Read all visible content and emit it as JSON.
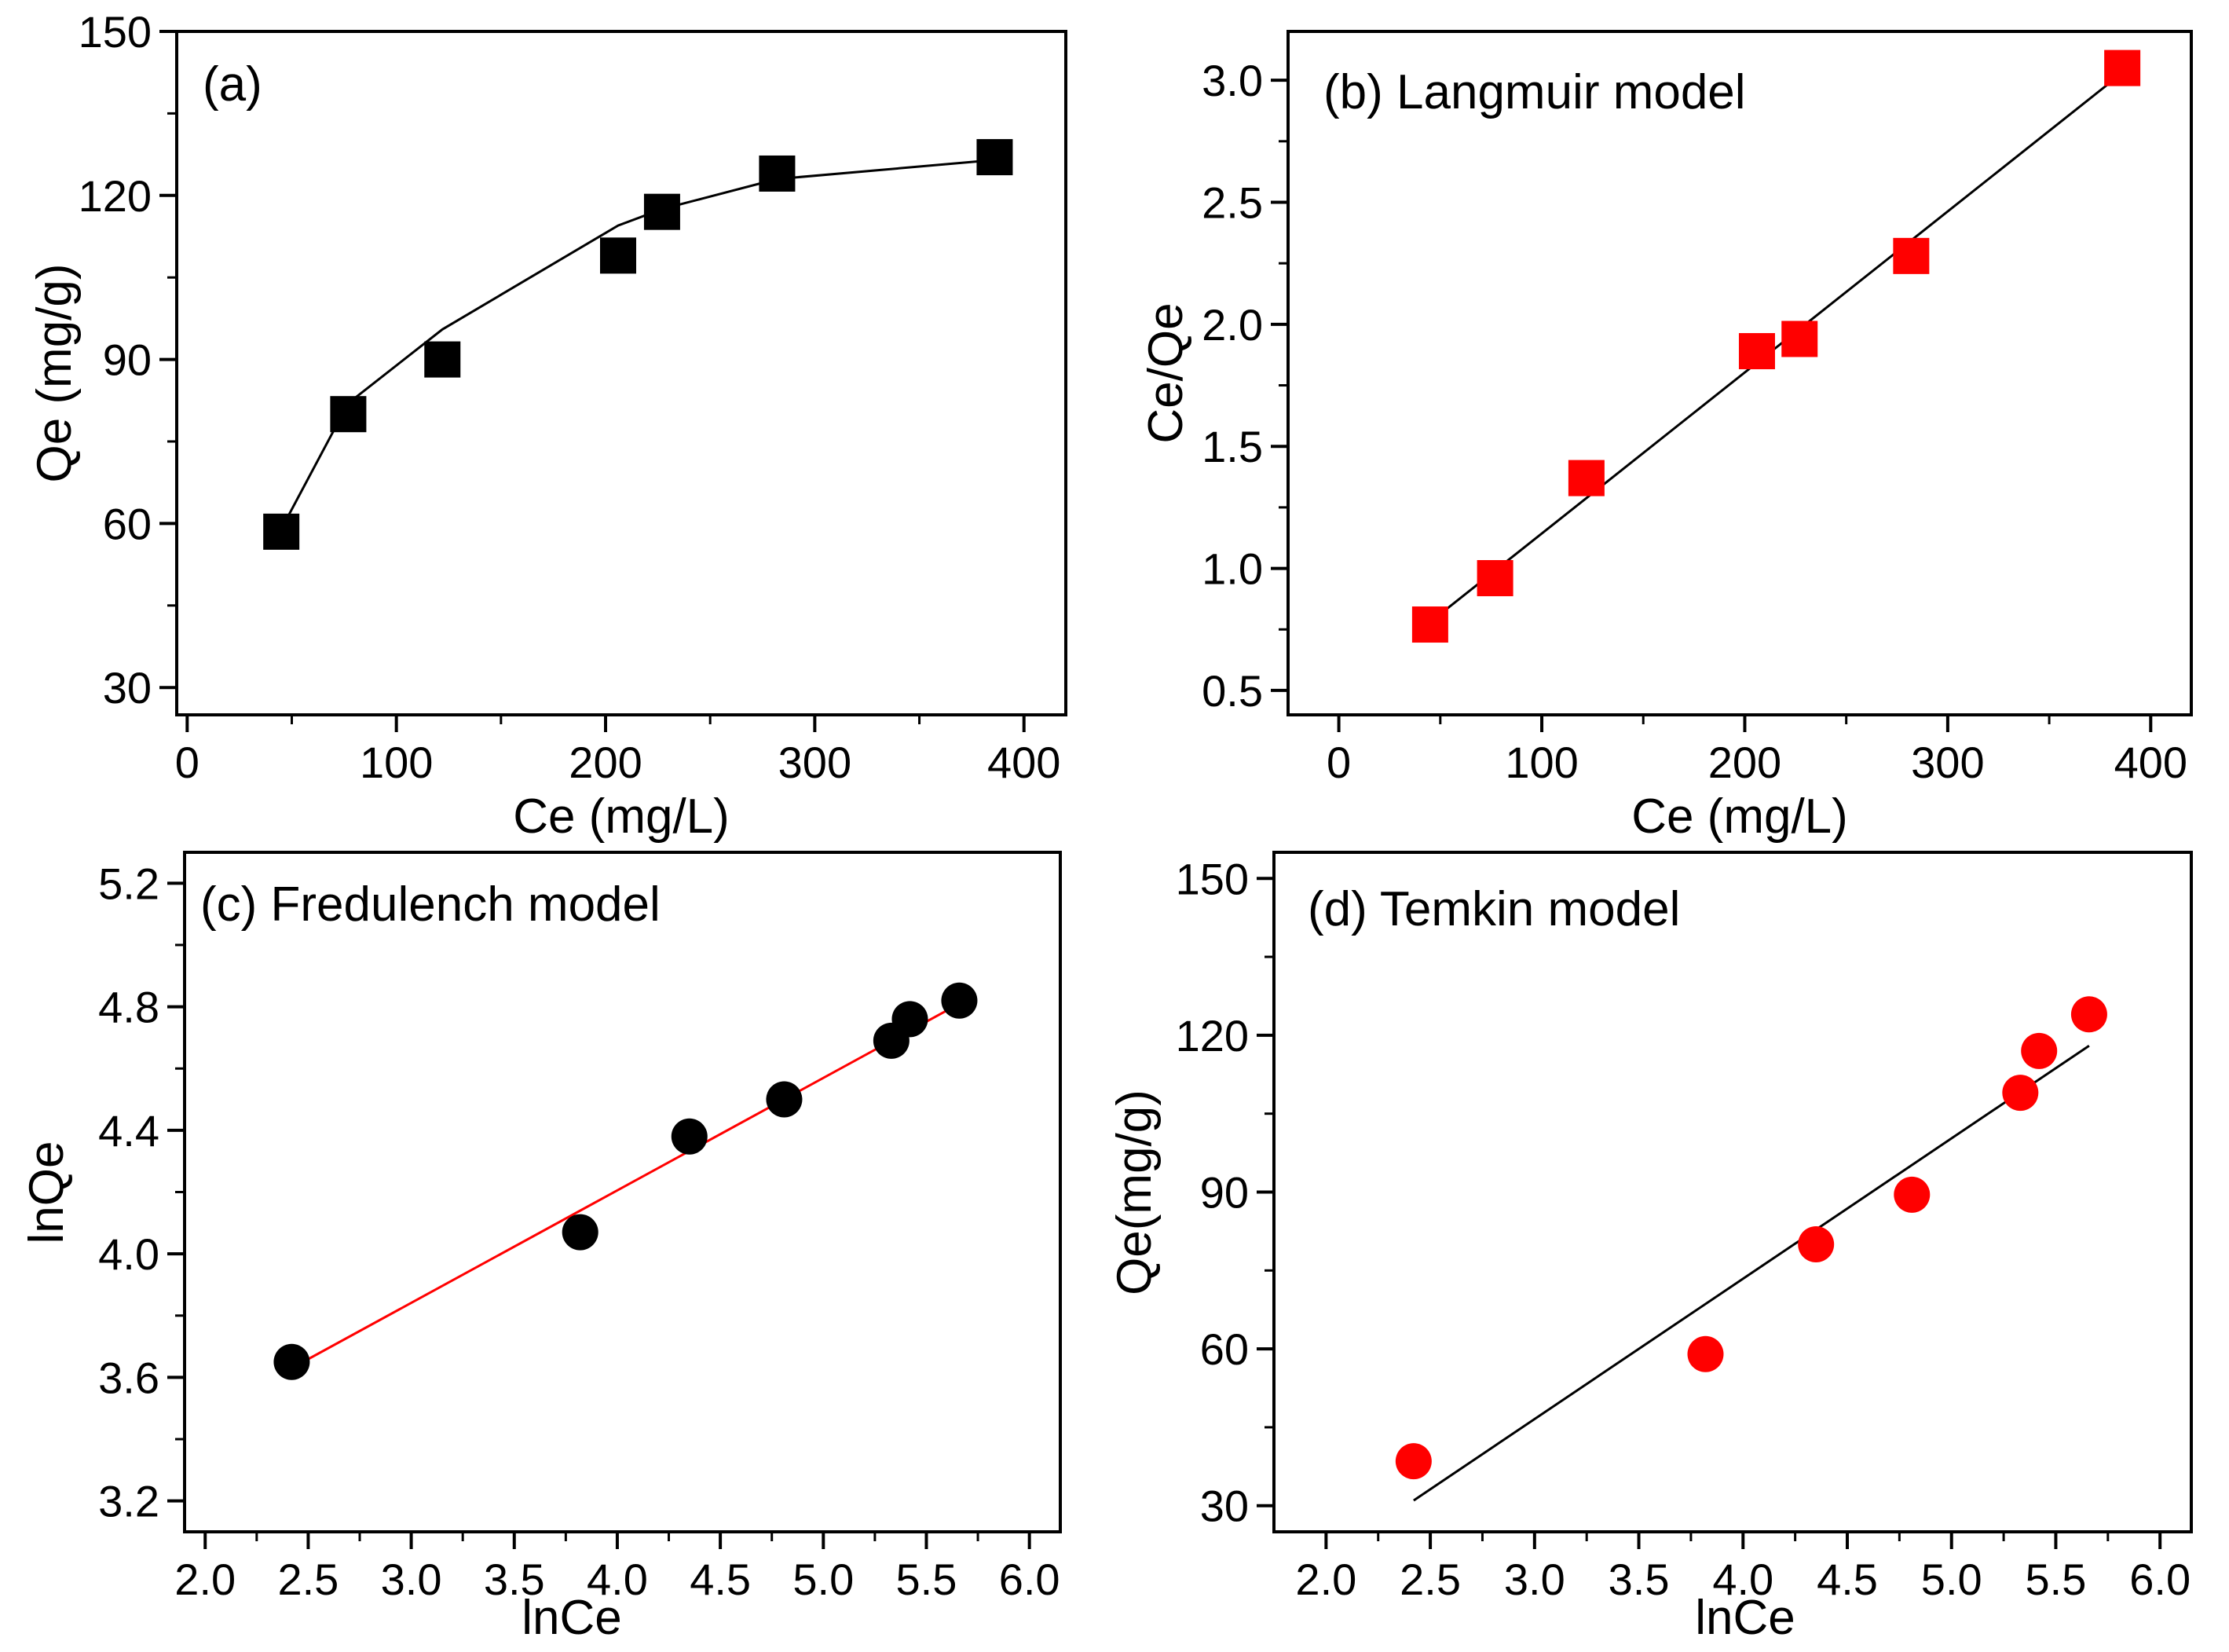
{
  "chart_data": [
    {
      "id": "a",
      "type": "scatter",
      "panel_label": "(a)",
      "title": "",
      "xlabel": "Ce (mg/L)",
      "ylabel": "Qe (mg/g)",
      "xlim": [
        -5,
        420
      ],
      "ylim": [
        25,
        150
      ],
      "xticks": [
        0,
        100,
        200,
        300,
        400
      ],
      "yticks": [
        30,
        60,
        90,
        120,
        150
      ],
      "x_decimals": 0,
      "y_decimals": 0,
      "marker": "square",
      "marker_color": "#000000",
      "line_color": "#000000",
      "fit_type": "curve",
      "x": [
        45,
        77,
        122,
        206,
        227,
        282,
        386
      ],
      "y": [
        58.5,
        80,
        90,
        109,
        117,
        124,
        127
      ],
      "fit_x": [
        45,
        77,
        122,
        206,
        227,
        282,
        386
      ],
      "fit_y": [
        59,
        82,
        95.5,
        114.5,
        117.5,
        123,
        126.5
      ]
    },
    {
      "id": "b",
      "type": "scatter",
      "panel_label": "(b) Langmuir model",
      "title": "",
      "xlabel": "Ce (mg/L)",
      "ylabel": "Ce/Qe",
      "xlim": [
        -25,
        420
      ],
      "ylim": [
        0.4,
        3.2
      ],
      "xticks": [
        0,
        100,
        200,
        300,
        400
      ],
      "yticks": [
        0.5,
        1.0,
        1.5,
        2.0,
        2.5,
        3.0
      ],
      "x_decimals": 0,
      "y_decimals": 1,
      "marker": "square",
      "marker_color": "#ff0000",
      "line_color": "#000000",
      "fit_type": "line",
      "x": [
        45,
        77,
        122,
        206,
        227,
        282,
        386
      ],
      "y": [
        0.77,
        0.96,
        1.37,
        1.89,
        1.94,
        2.28,
        3.05
      ],
      "fit_x": [
        45,
        386
      ],
      "fit_y": [
        0.78,
        3.03
      ]
    },
    {
      "id": "c",
      "type": "scatter",
      "panel_label": "(c) Fredulench model",
      "title": "",
      "xlabel": "lnCe",
      "ylabel": "lnQe",
      "xlim": [
        1.9,
        6.15
      ],
      "ylim": [
        3.1,
        5.3
      ],
      "xticks": [
        2.0,
        2.5,
        3.0,
        3.5,
        4.0,
        4.5,
        5.0,
        5.5,
        6.0
      ],
      "yticks": [
        3.2,
        3.6,
        4.0,
        4.4,
        4.8,
        5.2
      ],
      "x_decimals": 1,
      "y_decimals": 1,
      "marker": "circle",
      "marker_color": "#000000",
      "line_color": "#ff0000",
      "fit_type": "line",
      "x": [
        2.42,
        3.82,
        4.35,
        4.81,
        5.33,
        5.42,
        5.66
      ],
      "y": [
        3.65,
        4.07,
        4.38,
        4.5,
        4.69,
        4.76,
        4.82
      ],
      "fit_x": [
        2.42,
        5.66
      ],
      "fit_y": [
        3.63,
        4.81
      ]
    },
    {
      "id": "d",
      "type": "scatter",
      "panel_label": "(d) Temkin model",
      "title": "",
      "xlabel": "lnCe",
      "ylabel": "Qe(mg/g)",
      "xlim": [
        1.75,
        6.15
      ],
      "ylim": [
        25,
        155
      ],
      "xticks": [
        2.0,
        2.5,
        3.0,
        3.5,
        4.0,
        4.5,
        5.0,
        5.5,
        6.0
      ],
      "yticks": [
        30,
        60,
        90,
        120,
        150
      ],
      "x_decimals": 1,
      "y_decimals": 0,
      "marker": "circle",
      "marker_color": "#ff0000",
      "line_color": "#000000",
      "fit_type": "line",
      "x": [
        2.42,
        3.82,
        4.35,
        4.81,
        5.33,
        5.42,
        5.66
      ],
      "y": [
        38.5,
        59,
        80,
        89.5,
        109,
        117,
        124
      ],
      "fit_x": [
        2.42,
        5.66
      ],
      "fit_y": [
        31,
        118
      ]
    }
  ]
}
